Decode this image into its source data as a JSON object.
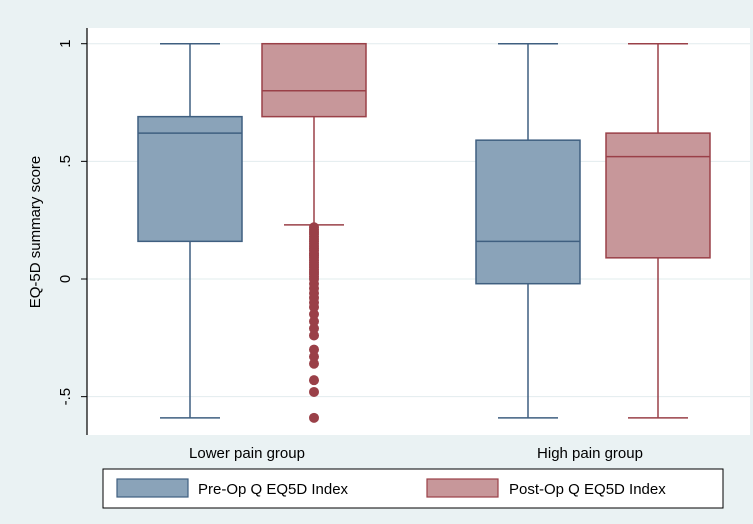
{
  "chart_data": {
    "type": "box",
    "title": "",
    "xlabel": "",
    "ylabel": "EQ-5D summary score",
    "ylim": [
      -0.65,
      1.08
    ],
    "yticks": [
      {
        "value": 1,
        "label": "1"
      },
      {
        "value": 0.5,
        "label": ".5"
      },
      {
        "value": 0,
        "label": "0"
      },
      {
        "value": -0.5,
        "label": "-.5"
      }
    ],
    "grid": true,
    "legend_position": "bottom",
    "categories": [
      "Lower pain group",
      "High pain group"
    ],
    "series": [
      {
        "name": "Pre-Op Q EQ5D Index",
        "color": "#8aa3b9",
        "stroke": "#3f5f80",
        "boxes": [
          {
            "whisker_low": -0.59,
            "q1": 0.16,
            "median": 0.62,
            "q3": 0.69,
            "whisker_high": 1.0,
            "outliers": []
          },
          {
            "whisker_low": -0.59,
            "q1": -0.02,
            "median": 0.16,
            "q3": 0.59,
            "whisker_high": 1.0,
            "outliers": []
          }
        ]
      },
      {
        "name": "Post-Op Q EQ5D Index",
        "color": "#c7979a",
        "stroke": "#9a4048",
        "boxes": [
          {
            "whisker_low": 0.23,
            "q1": 0.69,
            "median": 0.8,
            "q3": 1.0,
            "whisker_high": 1.0,
            "outliers": [
              0.22,
              0.21,
              0.2,
              0.19,
              0.18,
              0.17,
              0.16,
              0.15,
              0.14,
              0.13,
              0.12,
              0.11,
              0.1,
              0.09,
              0.08,
              0.07,
              0.06,
              0.05,
              0.04,
              0.03,
              0.02,
              0.01,
              0.0,
              -0.02,
              -0.04,
              -0.06,
              -0.08,
              -0.1,
              -0.12,
              -0.15,
              -0.18,
              -0.21,
              -0.24,
              -0.3,
              -0.33,
              -0.36,
              -0.43,
              -0.48,
              -0.59
            ]
          },
          {
            "whisker_low": -0.59,
            "q1": 0.09,
            "median": 0.52,
            "q3": 0.62,
            "whisker_high": 1.0,
            "outliers": []
          }
        ]
      }
    ]
  }
}
